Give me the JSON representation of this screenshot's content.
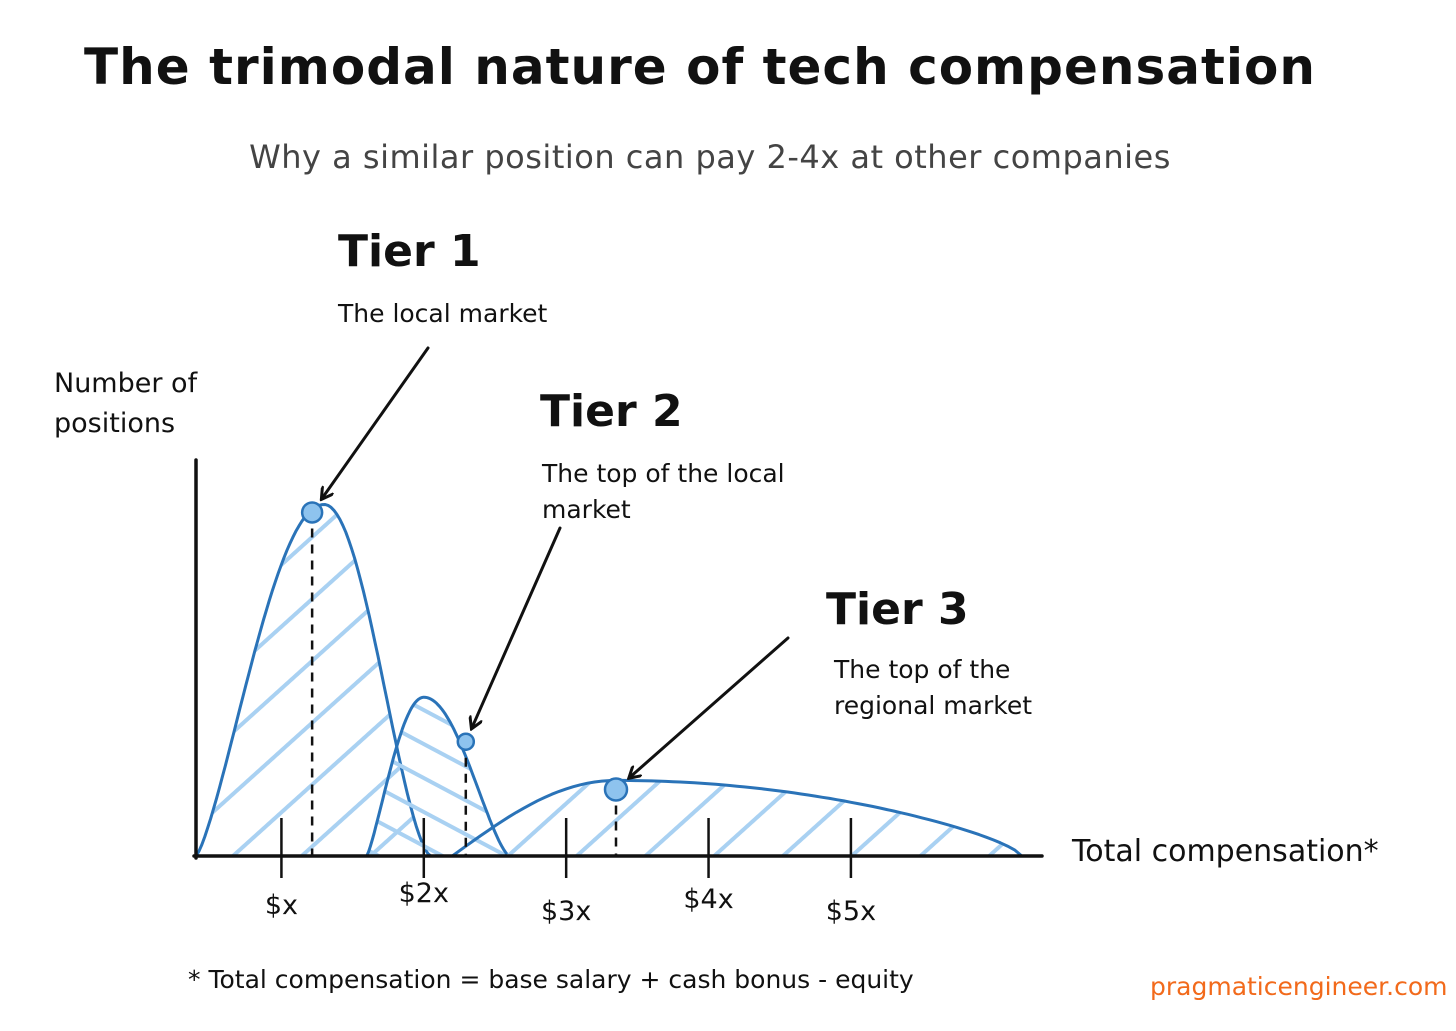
{
  "title": "The trimodal nature of tech compensation",
  "subtitle": "Why a similar position can pay  2-4x at other companies",
  "tiers": [
    {
      "name": "Tier 1",
      "description": "The local market"
    },
    {
      "name": "Tier 2",
      "description": "The top of the local market"
    },
    {
      "name": "Tier 3",
      "description": "The top of the regional market"
    }
  ],
  "footnote": "* Total compensation = base salary + cash bonus - equity",
  "brand": "pragmaticengineer.com",
  "colors": {
    "curve": "#2a73b8",
    "hatch": "#a9d1f2",
    "marker_fill": "#8ec3ee",
    "text": "#111111",
    "brand": "#f26a1b"
  },
  "chart_data": {
    "type": "area",
    "xlabel": "Total compensation*",
    "ylabel": "Number of positions",
    "ticks": [
      {
        "value": 1,
        "label": "$x"
      },
      {
        "value": 2,
        "label": "$2x"
      },
      {
        "value": 3,
        "label": "$3x"
      },
      {
        "value": 4,
        "label": "$4x"
      },
      {
        "value": 5,
        "label": "$5x"
      }
    ],
    "xlim": [
      0.4,
      6.3
    ],
    "ylim": [
      0,
      1.0
    ],
    "series": [
      {
        "name": "Tier 1",
        "peak_x": 1.3,
        "peak_y": 0.93,
        "range": [
          0.4,
          2.05
        ]
      },
      {
        "name": "Tier 2",
        "peak_x": 2.0,
        "peak_y": 0.42,
        "range": [
          1.6,
          2.6
        ]
      },
      {
        "name": "Tier 3",
        "peak_x": 3.35,
        "peak_y": 0.2,
        "range": [
          2.2,
          6.2
        ]
      }
    ]
  }
}
